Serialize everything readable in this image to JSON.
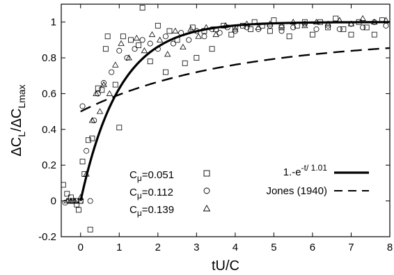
{
  "chart_data": {
    "type": "scatter",
    "xlabel": "tU/C",
    "ylabel": {
      "parts": [
        "ΔC",
        "L",
        "/ΔC",
        "Lmax"
      ]
    },
    "xlim": [
      -0.5,
      8
    ],
    "ylim": [
      -0.2,
      1.1
    ],
    "xticks": [
      "0",
      "1",
      "2",
      "3",
      "4",
      "5",
      "6",
      "7",
      "8"
    ],
    "yticks": [
      "-0.2",
      "0",
      "0.2",
      "0.4",
      "0.6",
      "0.8",
      "1"
    ],
    "grid": false,
    "legend_left": [
      {
        "label": {
          "base": "C",
          "sub": "μ",
          "value": "=0.051"
        },
        "marker": "square"
      },
      {
        "label": {
          "base": "C",
          "sub": "μ",
          "value": "=0.112"
        },
        "marker": "circle"
      },
      {
        "label": {
          "base": "C",
          "sub": "μ",
          "value": "=0.139"
        },
        "marker": "triangle"
      }
    ],
    "legend_right": [
      {
        "label": {
          "base": "1.-e",
          "sup": "-t/ 1.01"
        },
        "style": "solid"
      },
      {
        "label": {
          "text": "Jones (1940)"
        },
        "style": "dashed"
      }
    ],
    "curves": [
      {
        "style": "solid",
        "kind": "exp",
        "tau": 1.01,
        "t0": 0.0,
        "x_range": [
          0.0,
          8.0
        ]
      },
      {
        "style": "dashed",
        "kind": "jones",
        "t0": 0.0,
        "x_range": [
          0.0,
          8.0
        ]
      }
    ],
    "series": [
      {
        "marker": "square",
        "points": [
          [
            -0.45,
            0.09
          ],
          [
            -0.35,
            0.04
          ],
          [
            -0.25,
            0.02
          ],
          [
            -0.2,
            0.0
          ],
          [
            -0.1,
            -0.02
          ],
          [
            -0.05,
            -0.05
          ],
          [
            0.0,
            0.0
          ],
          [
            0.05,
            0.22
          ],
          [
            0.1,
            0.15
          ],
          [
            0.2,
            0.34
          ],
          [
            0.25,
            -0.16
          ],
          [
            0.3,
            0.35
          ],
          [
            0.45,
            0.63
          ],
          [
            0.55,
            0.62
          ],
          [
            0.65,
            0.85
          ],
          [
            0.7,
            0.92
          ],
          [
            0.9,
            0.65
          ],
          [
            1.0,
            0.41
          ],
          [
            1.1,
            0.92
          ],
          [
            1.3,
            0.9
          ],
          [
            1.5,
            0.87
          ],
          [
            1.6,
            1.08
          ],
          [
            1.8,
            0.78
          ],
          [
            2.0,
            0.98
          ],
          [
            2.2,
            0.72
          ],
          [
            2.3,
            0.95
          ],
          [
            2.5,
            0.9
          ],
          [
            2.7,
            0.77
          ],
          [
            2.9,
            0.97
          ],
          [
            3.0,
            0.8
          ],
          [
            3.2,
            0.95
          ],
          [
            3.4,
            0.85
          ],
          [
            3.5,
            0.96
          ],
          [
            3.7,
            0.98
          ],
          [
            3.9,
            0.93
          ],
          [
            4.0,
            0.97
          ],
          [
            4.2,
            0.98
          ],
          [
            4.4,
            0.96
          ],
          [
            4.5,
            1.0
          ],
          [
            4.7,
            0.98
          ],
          [
            4.9,
            0.95
          ],
          [
            5.0,
            1.01
          ],
          [
            5.2,
            0.97
          ],
          [
            5.4,
            0.92
          ],
          [
            5.6,
            0.98
          ],
          [
            5.8,
            1.0
          ],
          [
            6.0,
            0.93
          ],
          [
            6.2,
            1.0
          ],
          [
            6.4,
            0.97
          ],
          [
            6.6,
            1.02
          ],
          [
            6.8,
            0.96
          ],
          [
            7.0,
            0.93
          ],
          [
            7.2,
            1.0
          ],
          [
            7.4,
            0.97
          ],
          [
            7.6,
            0.93
          ],
          [
            7.8,
            1.01
          ]
        ]
      },
      {
        "marker": "circle",
        "points": [
          [
            -0.4,
            -0.01
          ],
          [
            -0.3,
            0.0
          ],
          [
            -0.2,
            0.0
          ],
          [
            -0.1,
            0.0
          ],
          [
            0.0,
            0.0
          ],
          [
            0.05,
            0.53
          ],
          [
            0.15,
            0.28
          ],
          [
            0.25,
            0.0
          ],
          [
            0.35,
            0.45
          ],
          [
            0.45,
            0.6
          ],
          [
            0.6,
            0.66
          ],
          [
            0.8,
            0.72
          ],
          [
            1.0,
            0.84
          ],
          [
            1.2,
            0.8
          ],
          [
            1.4,
            0.85
          ],
          [
            1.6,
            0.9
          ],
          [
            1.8,
            0.88
          ],
          [
            2.0,
            0.85
          ],
          [
            2.2,
            0.92
          ],
          [
            2.4,
            0.88
          ],
          [
            2.6,
            0.94
          ],
          [
            2.8,
            0.9
          ],
          [
            3.0,
            0.95
          ],
          [
            3.2,
            0.92
          ],
          [
            3.4,
            0.96
          ],
          [
            3.6,
            0.94
          ],
          [
            3.8,
            0.97
          ],
          [
            4.0,
            0.95
          ],
          [
            4.3,
            0.97
          ],
          [
            4.6,
            0.96
          ],
          [
            4.9,
            0.98
          ],
          [
            5.2,
            0.95
          ],
          [
            5.5,
            0.97
          ],
          [
            5.8,
            0.99
          ],
          [
            6.1,
            0.96
          ],
          [
            6.4,
            0.98
          ],
          [
            6.7,
            0.96
          ],
          [
            7.0,
            0.99
          ],
          [
            7.3,
            0.97
          ],
          [
            7.6,
            1.0
          ],
          [
            7.9,
            0.98
          ]
        ]
      },
      {
        "marker": "triangle",
        "points": [
          [
            -0.35,
            0.0
          ],
          [
            -0.25,
            0.0
          ],
          [
            -0.15,
            0.0
          ],
          [
            0.0,
            0.02
          ],
          [
            0.15,
            0.15
          ],
          [
            0.3,
            0.45
          ],
          [
            0.4,
            0.6
          ],
          [
            0.5,
            0.5
          ],
          [
            0.6,
            0.65
          ],
          [
            0.75,
            0.6
          ],
          [
            0.9,
            0.76
          ],
          [
            1.05,
            0.88
          ],
          [
            1.25,
            0.8
          ],
          [
            1.45,
            0.91
          ],
          [
            1.65,
            0.84
          ],
          [
            1.85,
            0.93
          ],
          [
            2.05,
            0.9
          ],
          [
            2.25,
            0.82
          ],
          [
            2.45,
            0.95
          ],
          [
            2.65,
            0.86
          ],
          [
            2.85,
            0.96
          ],
          [
            3.05,
            0.92
          ],
          [
            3.25,
            0.97
          ],
          [
            3.5,
            0.93
          ],
          [
            3.75,
            0.98
          ],
          [
            4.0,
            0.96
          ],
          [
            4.3,
            0.99
          ],
          [
            4.6,
            0.97
          ],
          [
            4.9,
            0.99
          ],
          [
            5.2,
            0.98
          ],
          [
            5.5,
            1.0
          ],
          [
            5.8,
            0.98
          ],
          [
            6.1,
            1.0
          ],
          [
            6.4,
            0.99
          ],
          [
            6.7,
            1.01
          ],
          [
            7.0,
            0.99
          ],
          [
            7.3,
            1.02
          ],
          [
            7.6,
            1.0
          ],
          [
            7.9,
            1.01
          ]
        ]
      }
    ]
  }
}
